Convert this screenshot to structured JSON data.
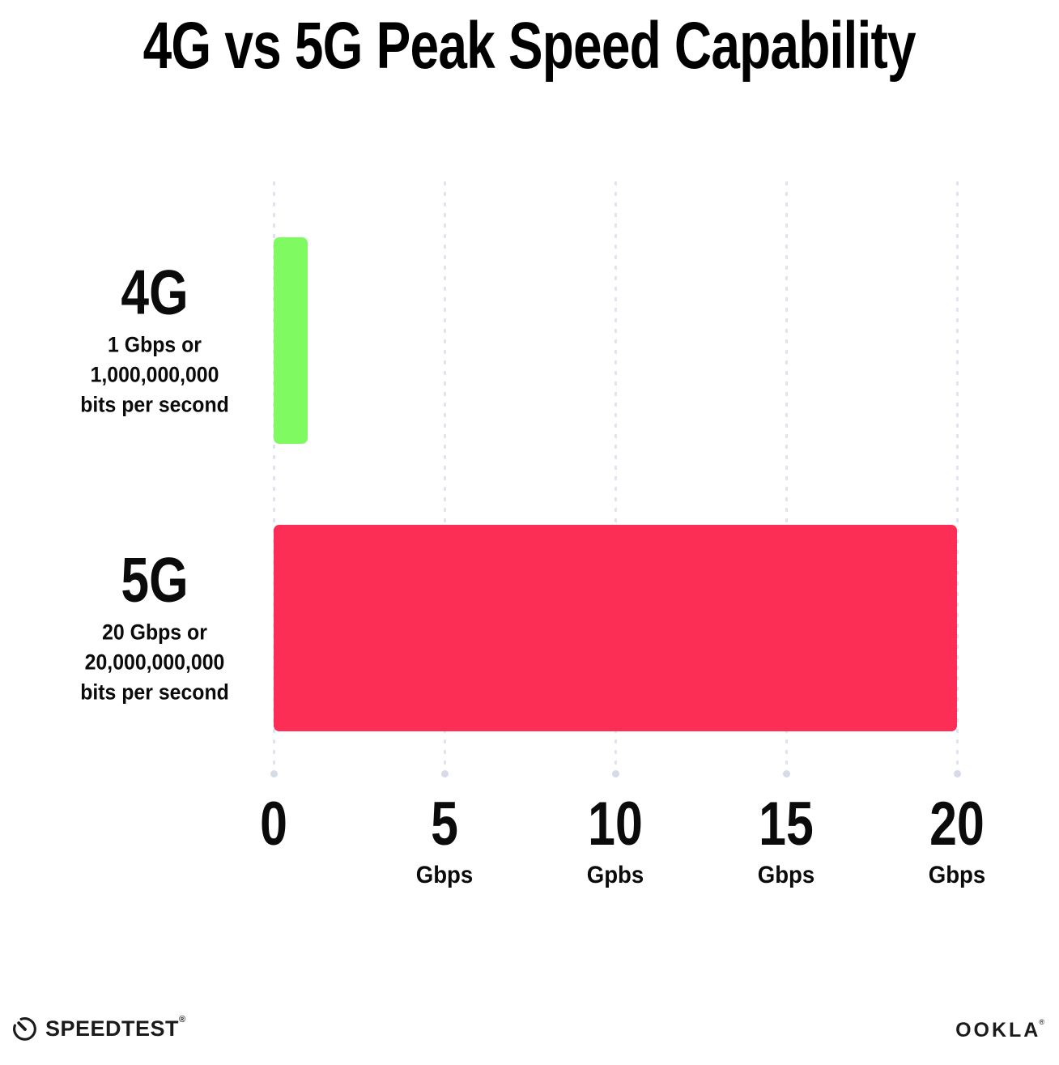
{
  "title": "4G vs 5G Peak Speed Capability",
  "chart_data": {
    "type": "bar",
    "orientation": "horizontal",
    "title": "4G vs 5G Peak Speed Capability",
    "categories": [
      "4G",
      "5G"
    ],
    "values": [
      1,
      20
    ],
    "unit": "Gbps",
    "xlim": [
      0,
      20
    ],
    "grid": "dotted-vertical-gridlines",
    "legend": "none",
    "xticks": [
      {
        "value": 0,
        "label": "0",
        "unit": ""
      },
      {
        "value": 5,
        "label": "5",
        "unit": "Gbps"
      },
      {
        "value": 10,
        "label": "10",
        "unit": "Gpbs"
      },
      {
        "value": 15,
        "label": "15",
        "unit": "Gbps"
      },
      {
        "value": 20,
        "label": "20",
        "unit": "Gbps"
      }
    ],
    "bars": [
      {
        "name": "4G",
        "value": 1,
        "color": "#7FFA61",
        "description_lines": [
          "1 Gbps or",
          "1,000,000,000",
          "bits per second"
        ]
      },
      {
        "name": "5G",
        "value": 20,
        "color": "#FC2E56",
        "description_lines": [
          "20 Gbps or",
          "20,000,000,000",
          "bits per second"
        ]
      }
    ]
  },
  "footer": {
    "speedtest": {
      "label": "SPEEDTEST",
      "trademark": "®",
      "icon": "speedometer-icon"
    },
    "ookla": {
      "label": "OOKLA",
      "trademark": "®"
    }
  },
  "colors": {
    "background": "#FFFFFF",
    "title_text": "#000000",
    "bar_4g": "#7FFA61",
    "bar_5g": "#FC2E56",
    "grid_dot": "#E0E2EE",
    "grid_end_dot": "#D7DAE7",
    "label_text": "#0B0B0B"
  }
}
